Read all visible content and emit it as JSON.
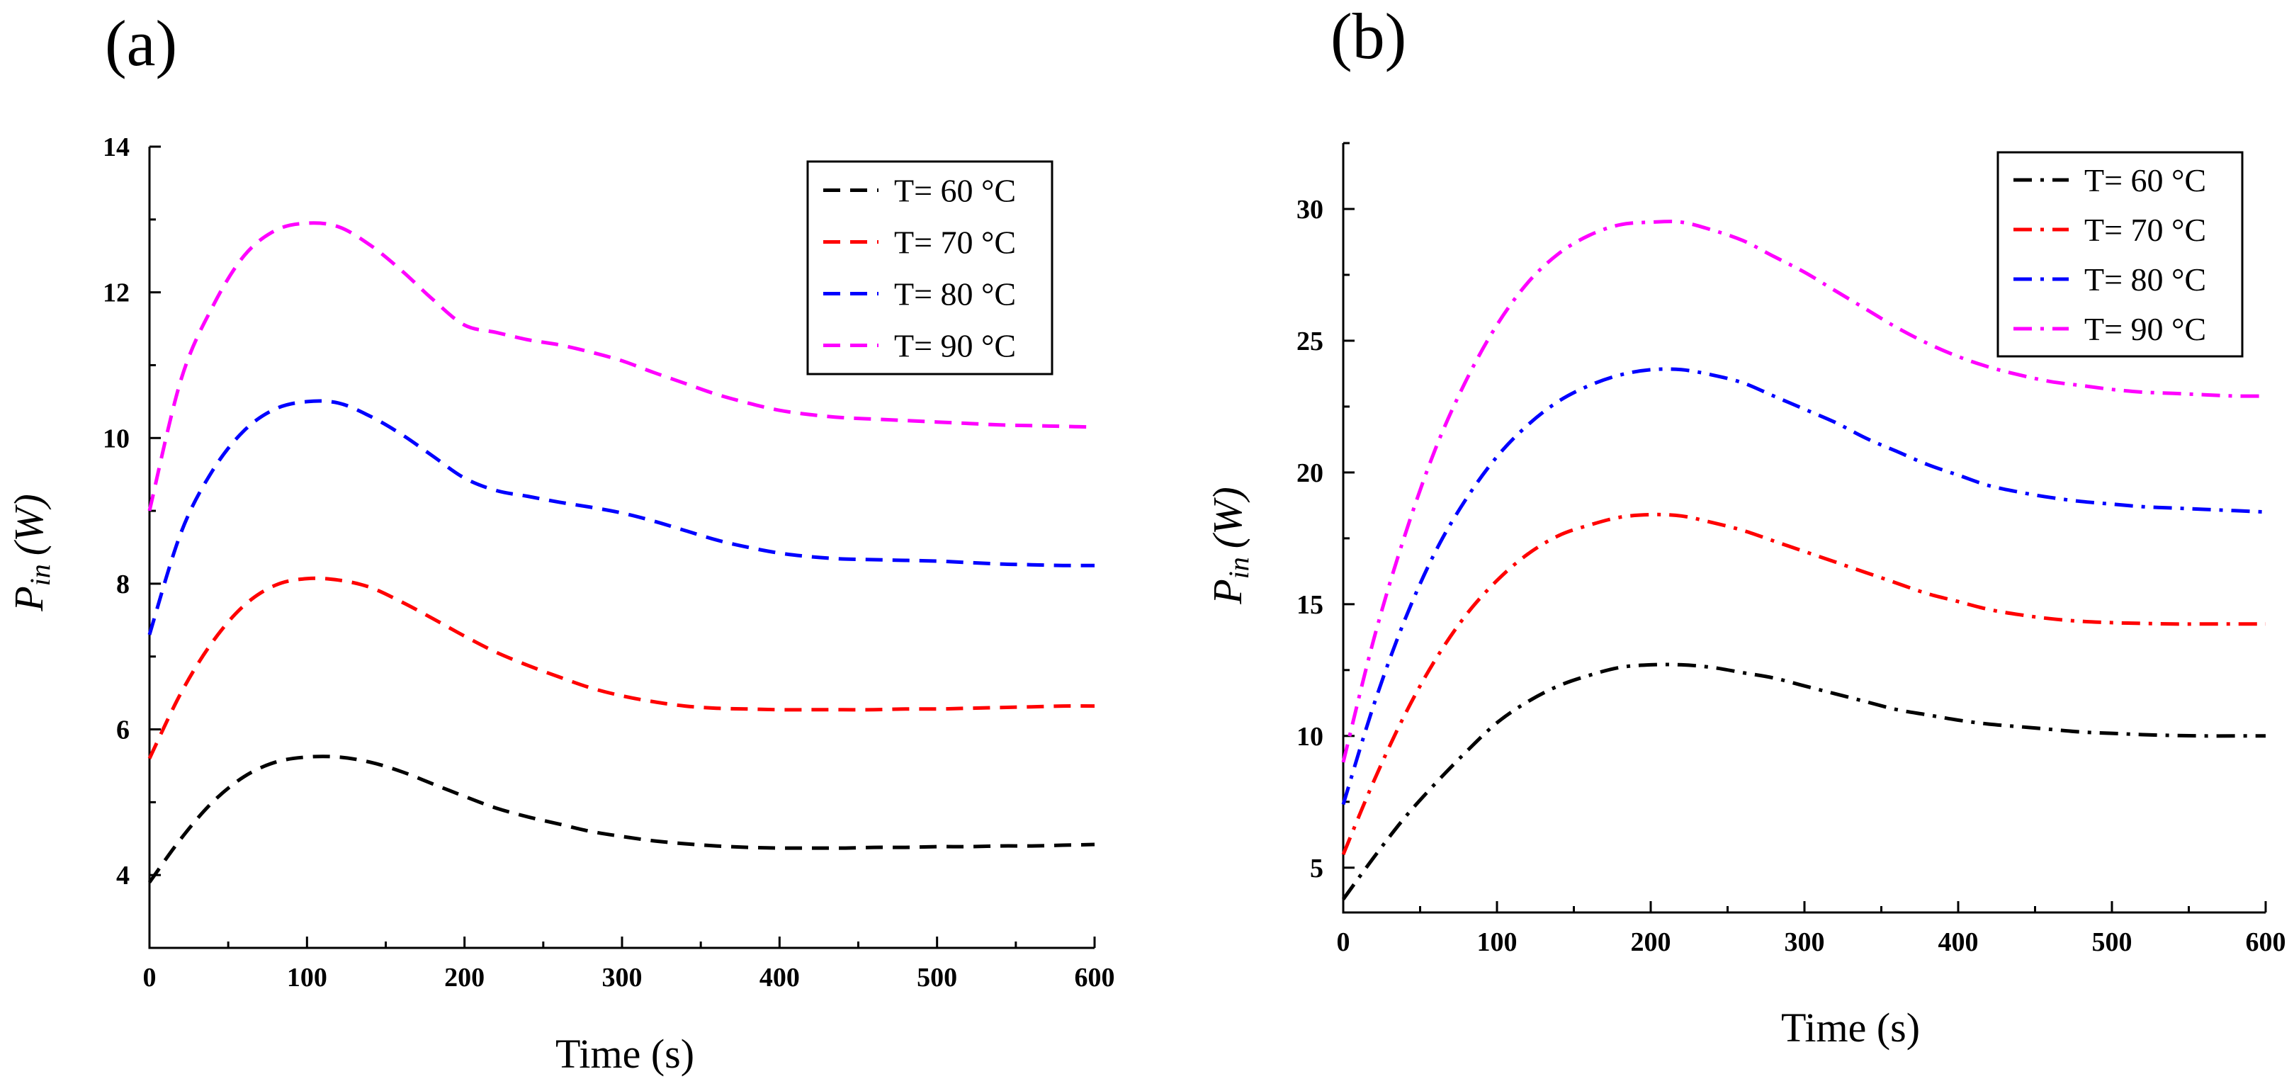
{
  "chart_data": [
    {
      "panel_label": "(a)",
      "type": "line",
      "line_style": "dashed",
      "xlabel": "Time (s)",
      "ylabel_main": "P",
      "ylabel_sub": "in",
      "ylabel_unit": "(W)",
      "xlim": [
        0,
        600
      ],
      "ylim": [
        3,
        14
      ],
      "xticks": [
        0,
        100,
        200,
        300,
        400,
        500,
        600
      ],
      "yticks": [
        4,
        6,
        8,
        10,
        12,
        14
      ],
      "grid": false,
      "legend_position": "top-right",
      "x": [
        0,
        20,
        40,
        60,
        80,
        100,
        120,
        140,
        160,
        180,
        200,
        220,
        240,
        260,
        280,
        300,
        320,
        340,
        360,
        380,
        400,
        420,
        440,
        460,
        480,
        500,
        520,
        540,
        560,
        580,
        600
      ],
      "series": [
        {
          "name": "T= 60 °C",
          "color": "#000000",
          "values": [
            3.9,
            4.5,
            5.0,
            5.35,
            5.55,
            5.62,
            5.62,
            5.55,
            5.42,
            5.25,
            5.08,
            4.92,
            4.8,
            4.7,
            4.6,
            4.53,
            4.47,
            4.43,
            4.4,
            4.38,
            4.37,
            4.37,
            4.37,
            4.38,
            4.38,
            4.39,
            4.39,
            4.4,
            4.4,
            4.41,
            4.42
          ]
        },
        {
          "name": "T= 70 °C",
          "color": "#ff0000",
          "values": [
            5.6,
            6.5,
            7.2,
            7.7,
            7.98,
            8.07,
            8.05,
            7.95,
            7.75,
            7.52,
            7.28,
            7.06,
            6.88,
            6.72,
            6.57,
            6.46,
            6.38,
            6.32,
            6.29,
            6.28,
            6.27,
            6.27,
            6.27,
            6.27,
            6.28,
            6.28,
            6.29,
            6.3,
            6.31,
            6.32,
            6.32
          ]
        },
        {
          "name": "T= 80 °C",
          "color": "#0000ff",
          "values": [
            7.3,
            8.7,
            9.55,
            10.1,
            10.4,
            10.5,
            10.48,
            10.3,
            10.05,
            9.75,
            9.45,
            9.28,
            9.2,
            9.12,
            9.05,
            8.97,
            8.86,
            8.73,
            8.6,
            8.5,
            8.42,
            8.37,
            8.34,
            8.33,
            8.32,
            8.31,
            8.29,
            8.27,
            8.26,
            8.25,
            8.25
          ]
        },
        {
          "name": "T= 90 °C",
          "color": "#ff00ff",
          "values": [
            9.0,
            10.8,
            11.8,
            12.5,
            12.85,
            12.95,
            12.9,
            12.65,
            12.3,
            11.9,
            11.55,
            11.45,
            11.35,
            11.28,
            11.18,
            11.06,
            10.9,
            10.75,
            10.6,
            10.48,
            10.38,
            10.32,
            10.28,
            10.26,
            10.24,
            10.22,
            10.2,
            10.18,
            10.17,
            10.16,
            10.15
          ]
        }
      ]
    },
    {
      "panel_label": "(b)",
      "type": "line",
      "line_style": "dash-dot",
      "xlabel": "Time (s)",
      "ylabel_main": "P",
      "ylabel_sub": "in",
      "ylabel_unit": "(W)",
      "xlim": [
        0,
        600
      ],
      "ylim": [
        3.3,
        32.5
      ],
      "xticks": [
        0,
        100,
        200,
        300,
        400,
        500,
        600
      ],
      "yticks": [
        5,
        10,
        15,
        20,
        25,
        30
      ],
      "grid": false,
      "legend_position": "top-right",
      "x": [
        0,
        20,
        40,
        60,
        80,
        100,
        120,
        140,
        160,
        180,
        200,
        220,
        240,
        260,
        280,
        300,
        320,
        340,
        360,
        380,
        400,
        420,
        440,
        460,
        480,
        500,
        520,
        540,
        560,
        580,
        600
      ],
      "series": [
        {
          "name": "T= 60 °C",
          "color": "#000000",
          "values": [
            3.8,
            5.4,
            6.9,
            8.2,
            9.4,
            10.5,
            11.3,
            11.9,
            12.3,
            12.6,
            12.7,
            12.7,
            12.6,
            12.4,
            12.2,
            11.9,
            11.6,
            11.3,
            11.0,
            10.8,
            10.6,
            10.45,
            10.35,
            10.25,
            10.15,
            10.1,
            10.05,
            10.02,
            10.0,
            10.0,
            10.0
          ]
        },
        {
          "name": "T= 70 °C",
          "color": "#ff0000",
          "values": [
            5.5,
            8.3,
            10.8,
            12.9,
            14.6,
            15.9,
            16.9,
            17.6,
            18.0,
            18.3,
            18.4,
            18.35,
            18.1,
            17.8,
            17.4,
            17.0,
            16.6,
            16.2,
            15.8,
            15.4,
            15.1,
            14.8,
            14.6,
            14.45,
            14.35,
            14.3,
            14.27,
            14.25,
            14.25,
            14.25,
            14.25
          ]
        },
        {
          "name": "T= 80 °C",
          "color": "#0000ff",
          "values": [
            7.4,
            11.2,
            14.4,
            17.0,
            19.0,
            20.6,
            21.8,
            22.7,
            23.3,
            23.7,
            23.9,
            23.9,
            23.7,
            23.4,
            22.9,
            22.4,
            21.9,
            21.3,
            20.8,
            20.3,
            19.9,
            19.5,
            19.25,
            19.05,
            18.9,
            18.8,
            18.7,
            18.65,
            18.6,
            18.55,
            18.5
          ]
        },
        {
          "name": "T= 90 °C",
          "color": "#ff00ff",
          "values": [
            9.0,
            13.7,
            17.6,
            20.9,
            23.5,
            25.6,
            27.2,
            28.3,
            29.0,
            29.4,
            29.5,
            29.5,
            29.2,
            28.8,
            28.2,
            27.6,
            26.9,
            26.2,
            25.5,
            24.9,
            24.4,
            24.0,
            23.7,
            23.45,
            23.3,
            23.15,
            23.05,
            23.0,
            22.95,
            22.9,
            22.9
          ]
        }
      ]
    }
  ]
}
